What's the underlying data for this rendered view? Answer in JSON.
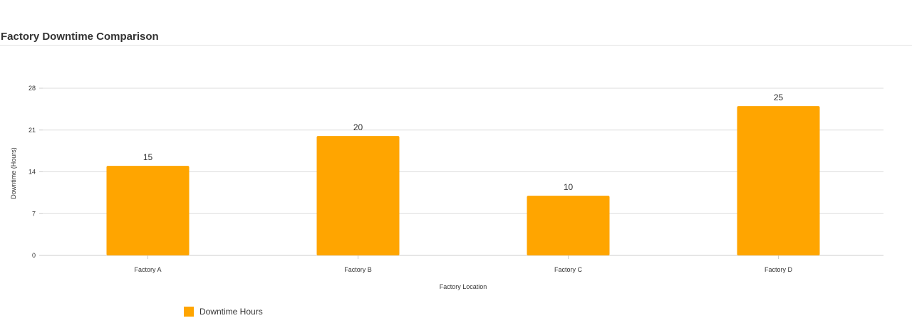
{
  "header": {
    "title": "Factory Downtime Comparison"
  },
  "chart_data": {
    "type": "bar",
    "title": "Factory Downtime Comparison",
    "xlabel": "Factory Location",
    "ylabel": "Downtime (Hours)",
    "categories": [
      "Factory A",
      "Factory B",
      "Factory C",
      "Factory D"
    ],
    "series": [
      {
        "name": "Downtime Hours",
        "values": [
          15,
          20,
          10,
          25
        ],
        "color": "#ffa500"
      }
    ],
    "ylim": [
      0,
      28
    ],
    "yticks": [
      0,
      7,
      14,
      21,
      28
    ],
    "grid": true,
    "legend": "bottom-left",
    "data_labels": true
  }
}
